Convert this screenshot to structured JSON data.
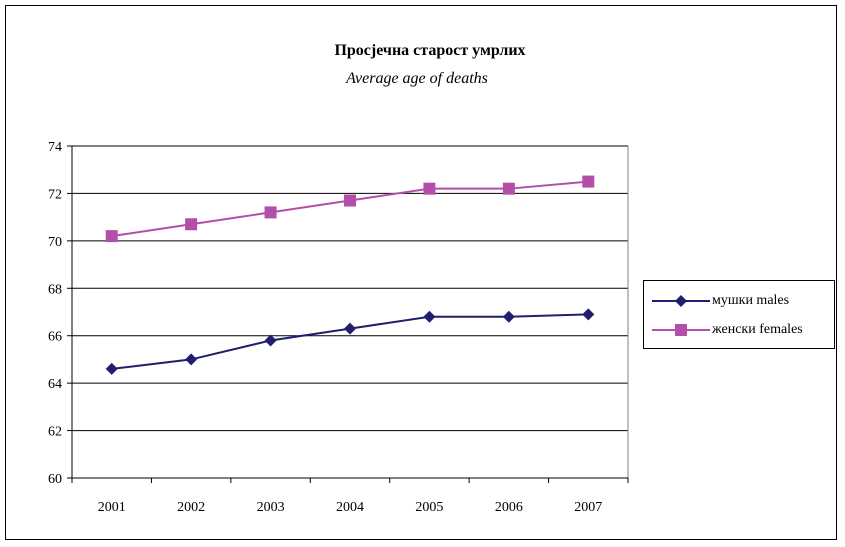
{
  "chart_data": {
    "type": "line",
    "title": "Просјечна старост умрлих",
    "subtitle": "Average age of deaths",
    "categories": [
      "2001",
      "2002",
      "2003",
      "2004",
      "2005",
      "2006",
      "2007"
    ],
    "series": [
      {
        "name": "мушки males",
        "values": [
          64.6,
          65.0,
          65.8,
          66.3,
          66.8,
          66.8,
          66.9
        ],
        "color": "#1f1f6e",
        "marker": "diamond"
      },
      {
        "name": "женски females",
        "values": [
          70.2,
          70.7,
          71.2,
          71.7,
          72.2,
          72.2,
          72.5
        ],
        "color": "#b34fa8",
        "marker": "square"
      }
    ],
    "ylim": [
      60,
      74
    ],
    "yticks": [
      "60",
      "62",
      "64",
      "66",
      "68",
      "70",
      "72",
      "74"
    ],
    "grid": true,
    "legend_position": "right"
  }
}
